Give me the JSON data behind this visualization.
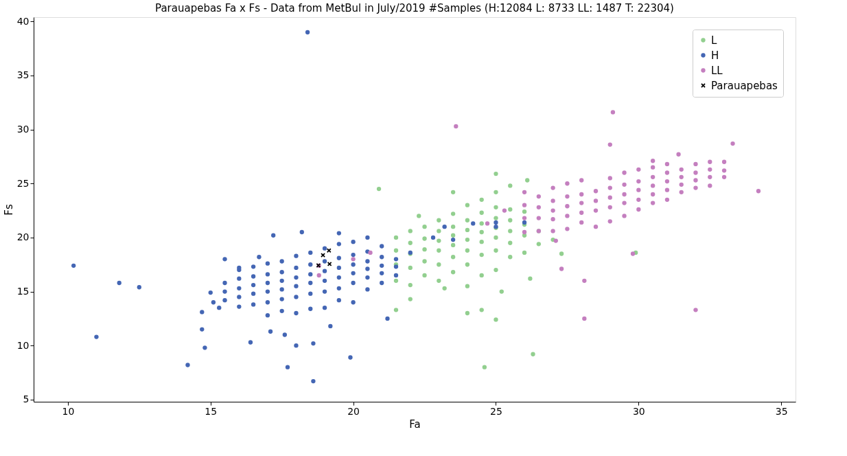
{
  "chart_data": {
    "type": "scatter",
    "title": "Parauapebas Fa x Fs - Data from MetBul in July/2019 #Samples (H:12084 L: 8733 LL: 1487 T: 22304)",
    "xlabel": "Fa",
    "ylabel": "Fs",
    "xlim": [
      8.8,
      35.5
    ],
    "ylim": [
      4.8,
      40.4
    ],
    "xticks": [
      10,
      15,
      20,
      25,
      30,
      35
    ],
    "yticks": [
      5,
      10,
      15,
      20,
      25,
      30,
      35,
      40
    ],
    "grid": false,
    "legend": "top right",
    "series": [
      {
        "name": "L",
        "color": "#92cf8f",
        "marker": "circle",
        "x": [
          21.5,
          21.5,
          21.5,
          21.5,
          22,
          22,
          22,
          22,
          22,
          22.5,
          22.5,
          22.5,
          22.5,
          22.5,
          23,
          23,
          23,
          23,
          23,
          23,
          23.5,
          23.5,
          23.5,
          23.5,
          23.5,
          23.5,
          24,
          24,
          24,
          24,
          24,
          24,
          24,
          24.5,
          24.5,
          24.5,
          24.5,
          24.5,
          24.5,
          24.5,
          25,
          25,
          25,
          25,
          25,
          25,
          25,
          25.5,
          25.5,
          25.5,
          25.5,
          25.5,
          25.5,
          26,
          26,
          26,
          26,
          26.5,
          26.5,
          27,
          20.9,
          24.6,
          26.3,
          25.0,
          24.0,
          24.5,
          22.0,
          21.5,
          23.2,
          25.2,
          26.2,
          27.3,
          29.9,
          25.0,
          23.5,
          26.1,
          22.3
        ],
        "values": [
          16.0,
          17.5,
          18.8,
          20.0,
          15.6,
          17.2,
          18.5,
          19.5,
          20.6,
          16.5,
          17.8,
          18.9,
          19.9,
          21.0,
          16.0,
          17.5,
          18.8,
          19.7,
          20.6,
          21.6,
          16.8,
          18.2,
          19.3,
          20.2,
          21.0,
          22.2,
          15.5,
          17.5,
          18.8,
          19.8,
          20.7,
          21.6,
          23.0,
          16.5,
          18.4,
          19.6,
          20.5,
          21.3,
          22.3,
          23.5,
          17.0,
          18.8,
          20.0,
          20.9,
          21.8,
          22.8,
          24.2,
          18.2,
          19.5,
          20.6,
          21.6,
          22.6,
          24.8,
          18.6,
          20.2,
          21.2,
          22.4,
          19.4,
          20.6,
          19.8,
          24.5,
          8.0,
          9.2,
          12.4,
          13.0,
          13.3,
          14.3,
          13.3,
          15.3,
          15.0,
          16.2,
          18.5,
          18.6,
          25.9,
          24.2,
          25.3,
          22.0
        ]
      },
      {
        "name": "H",
        "color": "#4466b4",
        "marker": "circle",
        "x": [
          15.5,
          15.5,
          15.5,
          16,
          16,
          16,
          16,
          16,
          16.5,
          16.5,
          16.5,
          16.5,
          16.5,
          17,
          17,
          17,
          17,
          17,
          17,
          17.5,
          17.5,
          17.5,
          17.5,
          17.5,
          17.5,
          18,
          18,
          18,
          18,
          18,
          18,
          18.5,
          18.5,
          18.5,
          18.5,
          18.5,
          18.5,
          19,
          19,
          19,
          19,
          19,
          19,
          19.5,
          19.5,
          19.5,
          19.5,
          19.5,
          19.5,
          20,
          20,
          20,
          20,
          20,
          20,
          20.5,
          20.5,
          20.5,
          20.5,
          20.5,
          21,
          21,
          21,
          21,
          21,
          21.5,
          21.5,
          21.5,
          18.4,
          10.2,
          11.0,
          11.8,
          12.5,
          14.2,
          18.6,
          17.7,
          19.9,
          14.8,
          14.7,
          16.4,
          17.1,
          17.6,
          18.0,
          18.6,
          19.2,
          21.2,
          15.5,
          17.2,
          18.2,
          15.0,
          15.1,
          14.7,
          15.3,
          16.0,
          16.7,
          19.5,
          20.5,
          22.0,
          23.2,
          25.0,
          24.2,
          22.8,
          23.5,
          25.0,
          26.0
        ],
        "values": [
          14.2,
          15.0,
          15.8,
          13.6,
          14.5,
          15.3,
          16.2,
          17.0,
          13.8,
          14.8,
          15.6,
          16.4,
          17.3,
          12.8,
          14.0,
          15.0,
          15.8,
          16.6,
          17.6,
          13.2,
          14.3,
          15.2,
          16.0,
          16.8,
          17.8,
          13.0,
          14.5,
          15.5,
          16.3,
          17.2,
          18.3,
          13.4,
          14.8,
          15.8,
          16.6,
          17.5,
          18.6,
          13.5,
          15.0,
          16.0,
          16.9,
          17.8,
          19.0,
          14.2,
          15.3,
          16.3,
          17.2,
          18.1,
          19.4,
          14.0,
          15.8,
          16.7,
          17.5,
          18.4,
          19.6,
          15.2,
          16.3,
          17.1,
          17.8,
          18.7,
          15.8,
          16.7,
          17.4,
          18.2,
          19.2,
          16.5,
          17.3,
          18.0,
          39.0,
          17.4,
          10.8,
          15.8,
          15.4,
          8.2,
          6.7,
          8.0,
          8.9,
          9.8,
          11.5,
          10.3,
          11.3,
          11.0,
          10.0,
          10.2,
          11.8,
          12.5,
          18.0,
          20.2,
          20.5,
          14.9,
          14.0,
          13.1,
          13.5,
          17.2,
          18.2,
          20.4,
          20.0,
          18.6,
          21.0,
          21.0,
          21.3,
          20.0,
          19.8,
          21.4,
          21.4
        ]
      },
      {
        "name": "LL",
        "color": "#c47fbf",
        "marker": "circle",
        "x": [
          26,
          26,
          26,
          26,
          26.5,
          26.5,
          26.5,
          26.5,
          27,
          27,
          27,
          27,
          27,
          27.5,
          27.5,
          27.5,
          27.5,
          27.5,
          28,
          28,
          28,
          28,
          28,
          28.5,
          28.5,
          28.5,
          28.5,
          29,
          29,
          29,
          29,
          29,
          29.5,
          29.5,
          29.5,
          29.5,
          29.5,
          30,
          30,
          30,
          30,
          30,
          30.5,
          30.5,
          30.5,
          30.5,
          30.5,
          31,
          31,
          31,
          31,
          31,
          31.5,
          31.5,
          31.5,
          31.5,
          32,
          32,
          32,
          32,
          32.5,
          32.5,
          32.5,
          32.5,
          33,
          33,
          29.1,
          23.6,
          29.0,
          33.3,
          34.2,
          32.0,
          28.1,
          28.1,
          27.3,
          29.8,
          27.1,
          25.3,
          24.7,
          18.8,
          18.8,
          20.0,
          20.6,
          30.5,
          31.4,
          33.0
        ],
        "values": [
          20.5,
          21.8,
          23.0,
          24.2,
          20.6,
          21.8,
          22.8,
          23.8,
          20.6,
          21.7,
          22.5,
          23.4,
          24.6,
          20.8,
          22.0,
          22.9,
          23.8,
          25.0,
          21.4,
          22.3,
          23.2,
          24.0,
          25.3,
          21.0,
          22.5,
          23.4,
          24.3,
          21.5,
          22.8,
          23.7,
          24.6,
          25.5,
          22.0,
          23.2,
          24.0,
          24.9,
          26.0,
          22.6,
          23.5,
          24.4,
          25.2,
          26.3,
          23.2,
          24.0,
          24.8,
          25.6,
          26.5,
          23.5,
          24.4,
          25.2,
          26.0,
          26.8,
          24.2,
          24.9,
          25.6,
          26.3,
          24.6,
          25.3,
          26.0,
          26.8,
          24.8,
          25.6,
          26.3,
          27.0,
          25.6,
          26.2,
          31.6,
          30.3,
          28.6,
          28.7,
          24.3,
          13.3,
          12.5,
          16.0,
          17.1,
          18.5,
          19.7,
          22.5,
          21.3,
          16.5,
          17.4,
          18.0,
          18.6,
          27.1,
          27.7,
          27.0
        ]
      },
      {
        "name": "Parauapebas",
        "color": "#000000",
        "marker": "cross",
        "x": [
          18.78,
          19.17,
          18.94,
          19.15
        ],
        "values": [
          17.42,
          17.55,
          18.37,
          18.8
        ]
      }
    ]
  }
}
